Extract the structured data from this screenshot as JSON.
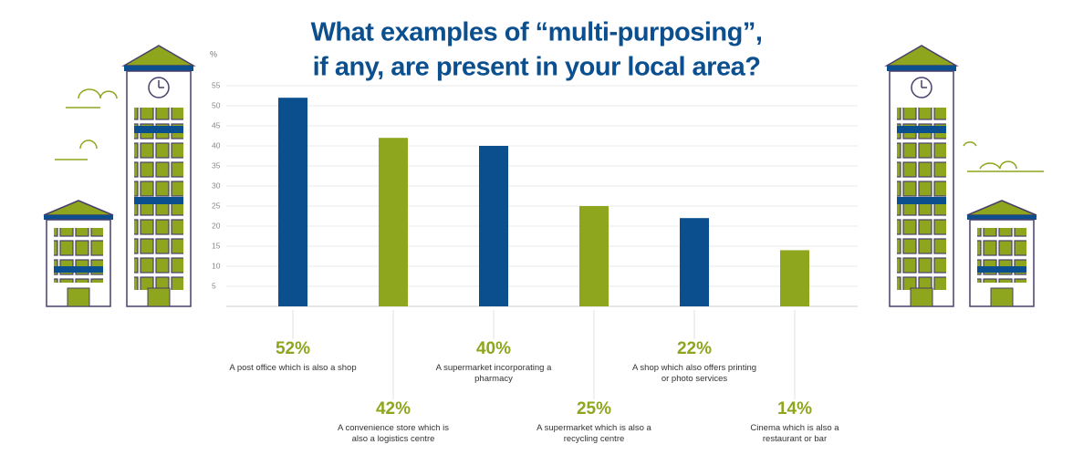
{
  "chart_data": {
    "type": "bar",
    "title": [
      "What examples of “multi-purposing”,",
      "if any, are present in your local area?"
    ],
    "y_label": "%",
    "categories": [
      "A post office which is also a shop",
      "A convenience store which is also a logistics centre",
      "A supermarket incorporating a pharmacy",
      "A supermarket which is also a recycling centre",
      "A shop which also offers printing or photo services",
      "Cinema which is also a restaurant or bar"
    ],
    "values": [
      52,
      42,
      40,
      25,
      22,
      14
    ],
    "value_labels": [
      "52%",
      "42%",
      "40%",
      "25%",
      "22%",
      "14%"
    ],
    "colors": [
      "#0b4f8f",
      "#8ea61e",
      "#0b4f8f",
      "#8ea61e",
      "#0b4f8f",
      "#8ea61e"
    ],
    "ylim": [
      0,
      55
    ],
    "yticks": [
      5,
      10,
      15,
      20,
      25,
      30,
      35,
      40,
      45,
      50,
      55
    ],
    "grid": true
  }
}
